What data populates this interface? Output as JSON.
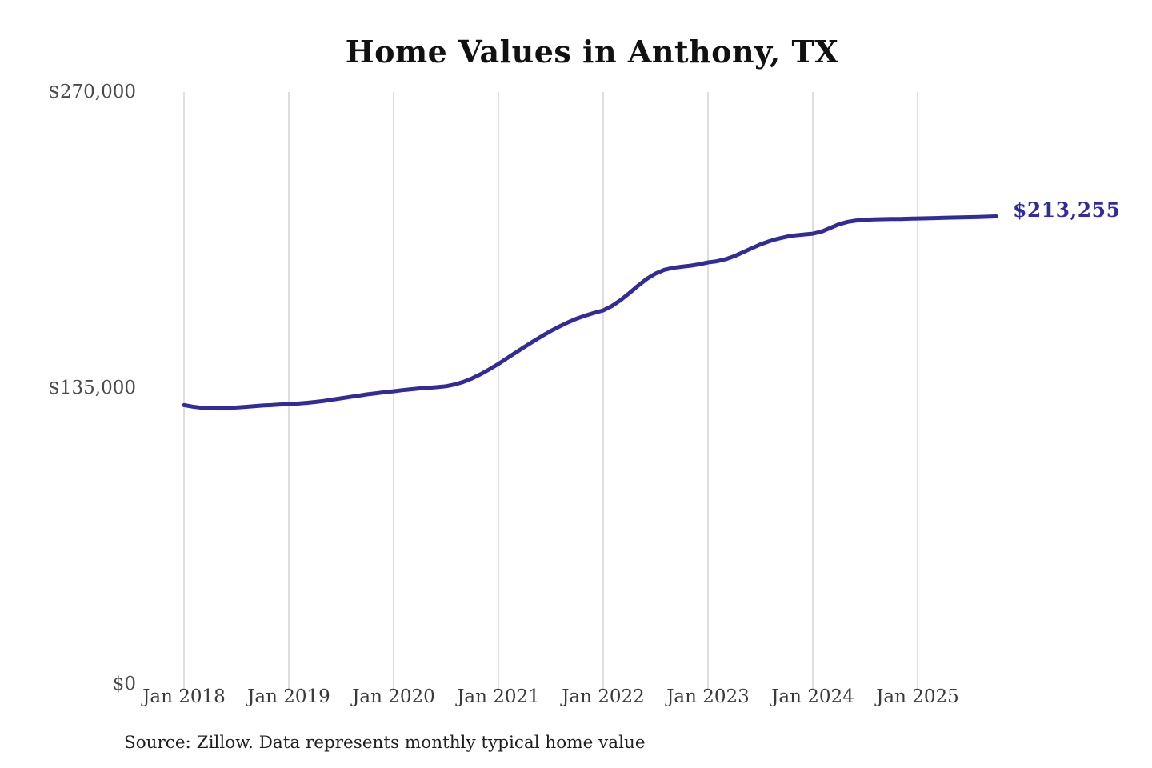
{
  "chart_data": {
    "type": "line",
    "title": "Home Values in Anthony, TX",
    "source": "Source: Zillow. Data represents monthly typical home value",
    "end_label": "$213,255",
    "end_value": 213255,
    "line_color": "#312b9b",
    "grid_color": "#cccccc",
    "legend_position": "none",
    "grid": "vertical-only",
    "ylim": [
      0,
      270000
    ],
    "y_ticks": [
      {
        "label": "$0",
        "value": 0
      },
      {
        "label": "$135,000",
        "value": 135000
      },
      {
        "label": "$270,000",
        "value": 270000
      }
    ],
    "x_tick_labels": [
      "Jan 2018",
      "Jan 2019",
      "Jan 2020",
      "Jan 2021",
      "Jan 2022",
      "Jan 2023",
      "Jan 2024",
      "Jan 2025"
    ],
    "series": [
      {
        "name": "Typical home value",
        "start_month": "2018-01",
        "end_month": "2025-10",
        "frequency": "monthly",
        "values": [
          127200,
          126500,
          126000,
          125800,
          125800,
          125900,
          126100,
          126400,
          126700,
          127000,
          127200,
          127500,
          127700,
          127900,
          128200,
          128600,
          129100,
          129700,
          130300,
          130900,
          131500,
          132100,
          132600,
          133100,
          133500,
          134000,
          134400,
          134800,
          135100,
          135400,
          135800,
          136600,
          137800,
          139400,
          141400,
          143600,
          146000,
          148600,
          151200,
          153800,
          156300,
          158700,
          161000,
          163100,
          165000,
          166700,
          168100,
          169300,
          170400,
          172400,
          175100,
          178300,
          181700,
          184800,
          187200,
          188900,
          189800,
          190300,
          190800,
          191400,
          192300,
          192800,
          193700,
          195100,
          196900,
          198700,
          200500,
          201900,
          203100,
          204000,
          204600,
          205000,
          205400,
          206300,
          208000,
          209700,
          210800,
          211400,
          211700,
          211900,
          212000,
          212100,
          212100,
          212200,
          212300,
          212400,
          212500,
          212600,
          212700,
          212800,
          212900,
          213000,
          213100,
          213255
        ]
      }
    ]
  }
}
